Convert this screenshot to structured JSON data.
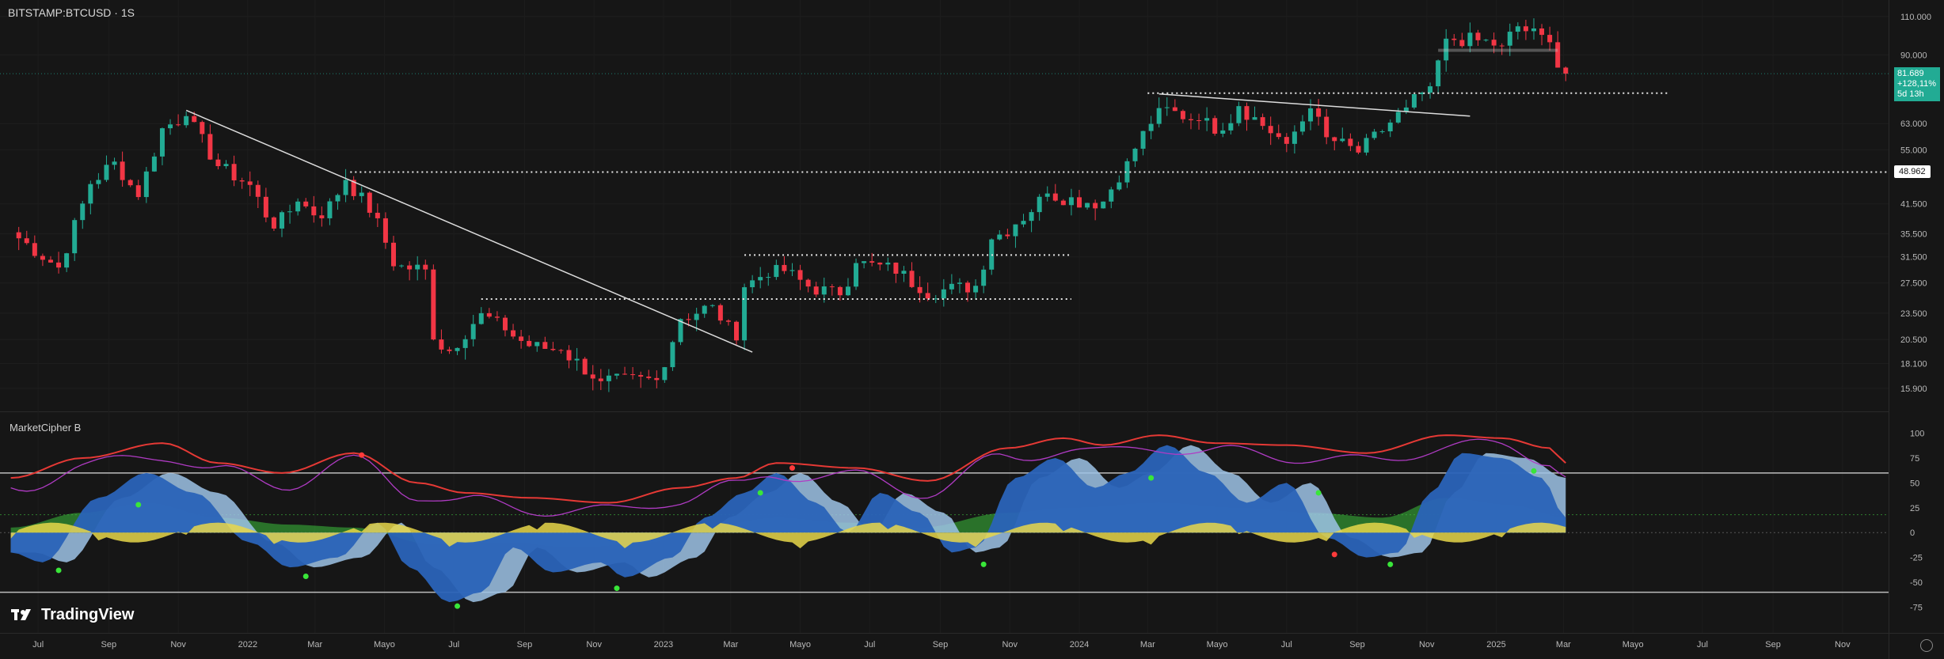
{
  "header": {
    "symbol_label": "BITSTAMP:BTCUSD · 1S"
  },
  "indicator": {
    "name": "MarketCipher B"
  },
  "branding": {
    "logo_text": "TradingView",
    "logo_icon": "tradingview-logo-icon"
  },
  "badges": {
    "last_price": "81.689",
    "change_pct": "+128,11%",
    "countdown": "5d 13h",
    "level_price": "48.962"
  },
  "colors": {
    "background": "#161616",
    "up_candle": "#22ab94",
    "down_candle": "#f23645",
    "wt1_blue": "#2a63b8",
    "wt2_light": "#9ec3e6",
    "rsi_red": "#e53935",
    "mfi_green": "#3cbf3c",
    "money_flow_yellow": "#e8d74a",
    "purple": "#b03bc4"
  },
  "chart_data": [
    {
      "type": "candlestick",
      "title": "BITSTAMP:BTCUSD · 1S",
      "scale": "log",
      "ylim": [
        15000,
        115000
      ],
      "y_ticks": [
        "110.000",
        "90.000",
        "63.000",
        "55.000",
        "41.500",
        "35.500",
        "31.500",
        "27.500",
        "23.500",
        "20.500",
        "18.100",
        "15.900"
      ],
      "y_tick_values": [
        110000,
        90000,
        63000,
        55000,
        41500,
        35500,
        31500,
        27500,
        23500,
        20500,
        18100,
        15900
      ],
      "x_ticks": [
        "Jul",
        "Sep",
        "Nov",
        "2022",
        "Mar",
        "Mayo",
        "Jul",
        "Sep",
        "Nov",
        "2023",
        "Mar",
        "Mayo",
        "Jul",
        "Sep",
        "Nov",
        "2024",
        "Mar",
        "Mayo",
        "Jul",
        "Sep",
        "Nov",
        "2025",
        "Mar",
        "Mayo",
        "Jul",
        "Sep",
        "Nov"
      ],
      "x_tick_dates": [
        "2021-07",
        "2021-09",
        "2021-11",
        "2022-01",
        "2022-03",
        "2022-05",
        "2022-07",
        "2022-09",
        "2022-11",
        "2023-01",
        "2023-03",
        "2023-05",
        "2023-07",
        "2023-09",
        "2023-11",
        "2024-01",
        "2024-03",
        "2024-05",
        "2024-07",
        "2024-09",
        "2024-11",
        "2025-01",
        "2025-03",
        "2025-05",
        "2025-07",
        "2025-09",
        "2025-11"
      ],
      "x_range": [
        "2021-06",
        "2025-12"
      ],
      "last_price": 81689,
      "close_anchors": [
        {
          "date": "2021-06-07",
          "value": 35800
        },
        {
          "date": "2021-07-19",
          "value": 29800
        },
        {
          "date": "2021-08-16",
          "value": 46000
        },
        {
          "date": "2021-09-06",
          "value": 51700
        },
        {
          "date": "2021-09-27",
          "value": 43000
        },
        {
          "date": "2021-10-18",
          "value": 61500
        },
        {
          "date": "2021-11-08",
          "value": 65500
        },
        {
          "date": "2021-12-06",
          "value": 50500
        },
        {
          "date": "2022-01-03",
          "value": 45800
        },
        {
          "date": "2022-01-24",
          "value": 36500
        },
        {
          "date": "2022-02-14",
          "value": 42000
        },
        {
          "date": "2022-03-07",
          "value": 38500
        },
        {
          "date": "2022-03-28",
          "value": 47000
        },
        {
          "date": "2022-04-25",
          "value": 38500
        },
        {
          "date": "2022-05-09",
          "value": 30000
        },
        {
          "date": "2022-06-06",
          "value": 29500
        },
        {
          "date": "2022-06-13",
          "value": 20500
        },
        {
          "date": "2022-06-27",
          "value": 19300
        },
        {
          "date": "2022-07-25",
          "value": 23500
        },
        {
          "date": "2022-08-15",
          "value": 21500
        },
        {
          "date": "2022-09-05",
          "value": 19800
        },
        {
          "date": "2022-10-03",
          "value": 19400
        },
        {
          "date": "2022-11-07",
          "value": 16500
        },
        {
          "date": "2022-12-26",
          "value": 16600
        },
        {
          "date": "2023-01-16",
          "value": 22800
        },
        {
          "date": "2023-02-13",
          "value": 24500
        },
        {
          "date": "2023-03-06",
          "value": 20400
        },
        {
          "date": "2023-03-13",
          "value": 26900
        },
        {
          "date": "2023-04-10",
          "value": 30200
        },
        {
          "date": "2023-05-08",
          "value": 27000
        },
        {
          "date": "2023-06-05",
          "value": 25800
        },
        {
          "date": "2023-06-19",
          "value": 30500
        },
        {
          "date": "2023-07-31",
          "value": 29300
        },
        {
          "date": "2023-08-14",
          "value": 26100
        },
        {
          "date": "2023-10-02",
          "value": 27100
        },
        {
          "date": "2023-10-16",
          "value": 34500
        },
        {
          "date": "2023-11-06",
          "value": 37300
        },
        {
          "date": "2023-12-04",
          "value": 43800
        },
        {
          "date": "2024-01-08",
          "value": 41700
        },
        {
          "date": "2024-01-22",
          "value": 42000
        },
        {
          "date": "2024-02-12",
          "value": 51800
        },
        {
          "date": "2024-03-11",
          "value": 68300
        },
        {
          "date": "2024-04-15",
          "value": 64000
        },
        {
          "date": "2024-05-06",
          "value": 60800
        },
        {
          "date": "2024-05-20",
          "value": 69000
        },
        {
          "date": "2024-07-01",
          "value": 56700
        },
        {
          "date": "2024-07-22",
          "value": 68200
        },
        {
          "date": "2024-08-05",
          "value": 58700
        },
        {
          "date": "2024-09-02",
          "value": 54200
        },
        {
          "date": "2024-10-14",
          "value": 68500
        },
        {
          "date": "2024-11-04",
          "value": 76500
        },
        {
          "date": "2024-11-18",
          "value": 98000
        },
        {
          "date": "2024-12-16",
          "value": 97200
        },
        {
          "date": "2025-01-06",
          "value": 94500
        },
        {
          "date": "2025-01-20",
          "value": 104500
        },
        {
          "date": "2025-02-17",
          "value": 96200
        },
        {
          "date": "2025-02-24",
          "value": 84300
        },
        {
          "date": "2025-03-03",
          "value": 81689
        }
      ],
      "annotations": [
        {
          "kind": "trendline",
          "from": {
            "date": "2021-11-08",
            "value": 67500
          },
          "to": {
            "date": "2023-03-20",
            "value": 19200
          }
        },
        {
          "kind": "trendline",
          "from": {
            "date": "2024-03-11",
            "value": 73500
          },
          "to": {
            "date": "2024-12-09",
            "value": 65500
          }
        },
        {
          "kind": "horizontal_level",
          "value": 48962,
          "from": "2022-04-01",
          "to": "2025-12-31",
          "style": "dotted",
          "label": "48.962"
        },
        {
          "kind": "horizontal_level",
          "value": 73800,
          "from": "2024-03-01",
          "to": "2025-06-01",
          "style": "dotted"
        },
        {
          "kind": "horizontal_level",
          "value": 31800,
          "from": "2023-03-13",
          "to": "2023-12-25",
          "style": "dotted"
        },
        {
          "kind": "horizontal_level",
          "value": 25300,
          "from": "2022-07-25",
          "to": "2023-12-25",
          "style": "dotted"
        },
        {
          "kind": "range_box",
          "from": "2024-11-11",
          "to": "2025-02-24",
          "low": 91500,
          "high": 93000
        }
      ]
    },
    {
      "type": "oscillator",
      "title": "MarketCipher B",
      "ylim": [
        -85,
        110
      ],
      "y_ticks": [
        "100",
        "75",
        "50",
        "25",
        "0",
        "-25",
        "-50",
        "-75"
      ],
      "y_tick_values": [
        100,
        75,
        50,
        25,
        0,
        -25,
        -50,
        -75
      ],
      "reference_levels": [
        60,
        -60,
        0
      ],
      "series": [
        {
          "name": "WT1",
          "anchors": [
            [
              "2021-06-07",
              -20
            ],
            [
              "2021-07-05",
              -30
            ],
            [
              "2021-08-23",
              35
            ],
            [
              "2021-10-04",
              60
            ],
            [
              "2021-11-15",
              40
            ],
            [
              "2022-01-03",
              -10
            ],
            [
              "2022-02-07",
              -35
            ],
            [
              "2022-03-21",
              -25
            ],
            [
              "2022-04-25",
              10
            ],
            [
              "2022-05-23",
              -35
            ],
            [
              "2022-06-27",
              -70
            ],
            [
              "2022-07-25",
              -60
            ],
            [
              "2022-08-22",
              -15
            ],
            [
              "2022-09-26",
              -40
            ],
            [
              "2022-11-07",
              -30
            ],
            [
              "2022-11-28",
              -45
            ],
            [
              "2023-01-09",
              -25
            ],
            [
              "2023-02-06",
              15
            ],
            [
              "2023-03-13",
              40
            ],
            [
              "2023-04-10",
              60
            ],
            [
              "2023-05-15",
              30
            ],
            [
              "2023-06-12",
              0
            ],
            [
              "2023-07-10",
              40
            ],
            [
              "2023-08-14",
              20
            ],
            [
              "2023-09-11",
              -20
            ],
            [
              "2023-10-02",
              -15
            ],
            [
              "2023-11-06",
              55
            ],
            [
              "2023-12-11",
              75
            ],
            [
              "2024-01-15",
              45
            ],
            [
              "2024-02-12",
              60
            ],
            [
              "2024-03-18",
              88
            ],
            [
              "2024-04-22",
              60
            ],
            [
              "2024-05-27",
              30
            ],
            [
              "2024-07-01",
              50
            ],
            [
              "2024-08-05",
              -5
            ],
            [
              "2024-09-09",
              -25
            ],
            [
              "2024-10-07",
              -20
            ],
            [
              "2024-11-04",
              40
            ],
            [
              "2024-12-02",
              80
            ],
            [
              "2025-01-06",
              75
            ],
            [
              "2025-02-10",
              55
            ],
            [
              "2025-03-03",
              15
            ]
          ]
        },
        {
          "name": "RSI",
          "anchors": [
            [
              "2021-06-07",
              55
            ],
            [
              "2021-08-09",
              75
            ],
            [
              "2021-10-18",
              90
            ],
            [
              "2021-12-06",
              70
            ],
            [
              "2022-01-31",
              60
            ],
            [
              "2022-04-04",
              80
            ],
            [
              "2022-05-30",
              50
            ],
            [
              "2022-07-11",
              40
            ],
            [
              "2022-09-05",
              35
            ],
            [
              "2022-11-14",
              30
            ],
            [
              "2023-01-16",
              45
            ],
            [
              "2023-03-06",
              55
            ],
            [
              "2023-04-10",
              70
            ],
            [
              "2023-06-19",
              65
            ],
            [
              "2023-08-21",
              52
            ],
            [
              "2023-10-30",
              85
            ],
            [
              "2023-12-18",
              95
            ],
            [
              "2024-01-22",
              88
            ],
            [
              "2024-03-11",
              98
            ],
            [
              "2024-04-29",
              90
            ],
            [
              "2024-07-01",
              88
            ],
            [
              "2024-09-09",
              80
            ],
            [
              "2024-11-18",
              98
            ],
            [
              "2025-01-06",
              95
            ],
            [
              "2025-02-17",
              85
            ],
            [
              "2025-03-03",
              70
            ]
          ]
        },
        {
          "name": "MFI",
          "anchors": [
            [
              "2021-06-07",
              5
            ],
            [
              "2021-08-09",
              20
            ],
            [
              "2021-10-04",
              30
            ],
            [
              "2021-12-06",
              15
            ],
            [
              "2022-02-07",
              8
            ],
            [
              "2022-04-04",
              5
            ],
            [
              "2022-06-13",
              -12
            ],
            [
              "2022-08-15",
              -10
            ],
            [
              "2022-10-17",
              -15
            ],
            [
              "2022-12-19",
              -10
            ],
            [
              "2023-02-06",
              5
            ],
            [
              "2023-04-10",
              15
            ],
            [
              "2023-06-12",
              10
            ],
            [
              "2023-08-14",
              5
            ],
            [
              "2023-10-30",
              20
            ],
            [
              "2023-12-25",
              25
            ],
            [
              "2024-03-11",
              30
            ],
            [
              "2024-05-20",
              25
            ],
            [
              "2024-07-22",
              20
            ],
            [
              "2024-09-23",
              15
            ],
            [
              "2024-11-18",
              35
            ],
            [
              "2025-01-13",
              28
            ],
            [
              "2025-03-03",
              15
            ]
          ]
        }
      ],
      "signal_dots": [
        {
          "date": "2021-07-19",
          "value": -38,
          "color": "green"
        },
        {
          "date": "2021-09-27",
          "value": 28,
          "color": "green"
        },
        {
          "date": "2022-02-21",
          "value": -44,
          "color": "green"
        },
        {
          "date": "2022-07-04",
          "value": -74,
          "color": "green"
        },
        {
          "date": "2022-11-21",
          "value": -56,
          "color": "green"
        },
        {
          "date": "2023-03-27",
          "value": 40,
          "color": "green"
        },
        {
          "date": "2023-10-09",
          "value": -32,
          "color": "green"
        },
        {
          "date": "2024-03-04",
          "value": 55,
          "color": "green"
        },
        {
          "date": "2024-07-29",
          "value": 40,
          "color": "green"
        },
        {
          "date": "2024-09-30",
          "value": -32,
          "color": "green"
        },
        {
          "date": "2025-02-03",
          "value": 62,
          "color": "green"
        },
        {
          "date": "2022-04-11",
          "value": 78,
          "color": "red"
        },
        {
          "date": "2023-04-24",
          "value": 65,
          "color": "red"
        },
        {
          "date": "2024-08-12",
          "value": -22,
          "color": "red"
        }
      ]
    }
  ]
}
